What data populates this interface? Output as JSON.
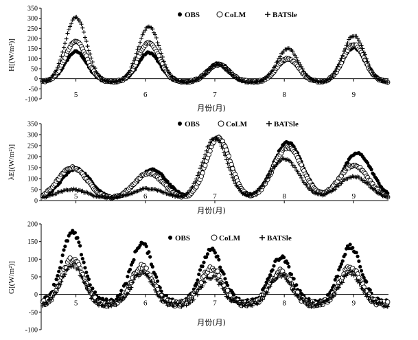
{
  "chart_data": [
    {
      "type": "scatter",
      "ylabel": "H[(W/m²)]",
      "xlabel": "月份(月)",
      "ylim": [
        -100,
        350
      ],
      "ytick_step": 50,
      "xlim": [
        4.5,
        9.5
      ],
      "xticks": [
        5,
        6,
        7,
        8,
        9
      ],
      "series": [
        {
          "name": "OBS",
          "marker": "dot",
          "peaks": [
            [
              5.0,
              135
            ],
            [
              6.05,
              130
            ],
            [
              7.05,
              78
            ],
            [
              8.05,
              95
            ],
            [
              9.0,
              155
            ]
          ]
        },
        {
          "name": "CoLM",
          "marker": "circle",
          "peaks": [
            [
              5.0,
              185
            ],
            [
              6.05,
              180
            ],
            [
              7.05,
              70
            ],
            [
              8.05,
              100
            ],
            [
              9.0,
              170
            ]
          ]
        },
        {
          "name": "BATSle",
          "marker": "plus",
          "peaks": [
            [
              5.0,
              305
            ],
            [
              6.05,
              260
            ],
            [
              7.05,
              70
            ],
            [
              8.05,
              150
            ],
            [
              9.0,
              215
            ]
          ]
        }
      ]
    },
    {
      "type": "scatter",
      "ylabel": "λE[(W/m²)]",
      "xlabel": "月份(月)",
      "ylim": [
        0,
        350
      ],
      "ytick_step": 50,
      "xlim": [
        4.5,
        9.5
      ],
      "xticks": [
        5,
        6,
        7,
        8,
        9
      ],
      "series": [
        {
          "name": "OBS",
          "marker": "dot",
          "peaks": [
            [
              5.0,
              145
            ],
            [
              6.1,
              140
            ],
            [
              7.05,
              290
            ],
            [
              8.05,
              265
            ],
            [
              9.05,
              215
            ]
          ]
        },
        {
          "name": "CoLM",
          "marker": "circle",
          "peaks": [
            [
              4.95,
              150
            ],
            [
              6.05,
              125
            ],
            [
              7.05,
              285
            ],
            [
              8.05,
              240
            ],
            [
              9.0,
              160
            ]
          ]
        },
        {
          "name": "BATSle",
          "marker": "plus",
          "peaks": [
            [
              4.95,
              50
            ],
            [
              6.05,
              55
            ],
            [
              7.0,
              285
            ],
            [
              8.0,
              190
            ],
            [
              9.0,
              110
            ]
          ]
        }
      ]
    },
    {
      "type": "scatter",
      "ylabel": "G[(W/m²)]",
      "xlabel": "月份(月)",
      "ylim": [
        -100,
        200
      ],
      "ytick_step": 50,
      "xlim": [
        4.5,
        9.5
      ],
      "xticks": [
        5,
        6,
        7,
        8,
        9
      ],
      "series": [
        {
          "name": "OBS",
          "marker": "dot",
          "peaks": [
            [
              4.95,
              175
            ],
            [
              5.95,
              145
            ],
            [
              6.95,
              125
            ],
            [
              7.95,
              105
            ],
            [
              8.95,
              135
            ]
          ]
        },
        {
          "name": "CoLM",
          "marker": "circle",
          "peaks": [
            [
              4.95,
              100
            ],
            [
              5.95,
              80
            ],
            [
              6.95,
              75
            ],
            [
              7.95,
              65
            ],
            [
              8.95,
              75
            ]
          ]
        },
        {
          "name": "BATSle",
          "marker": "plus",
          "peaks": [
            [
              4.95,
              85
            ],
            [
              5.95,
              60
            ],
            [
              6.95,
              50
            ],
            [
              7.95,
              55
            ],
            [
              8.95,
              60
            ]
          ]
        }
      ]
    }
  ]
}
